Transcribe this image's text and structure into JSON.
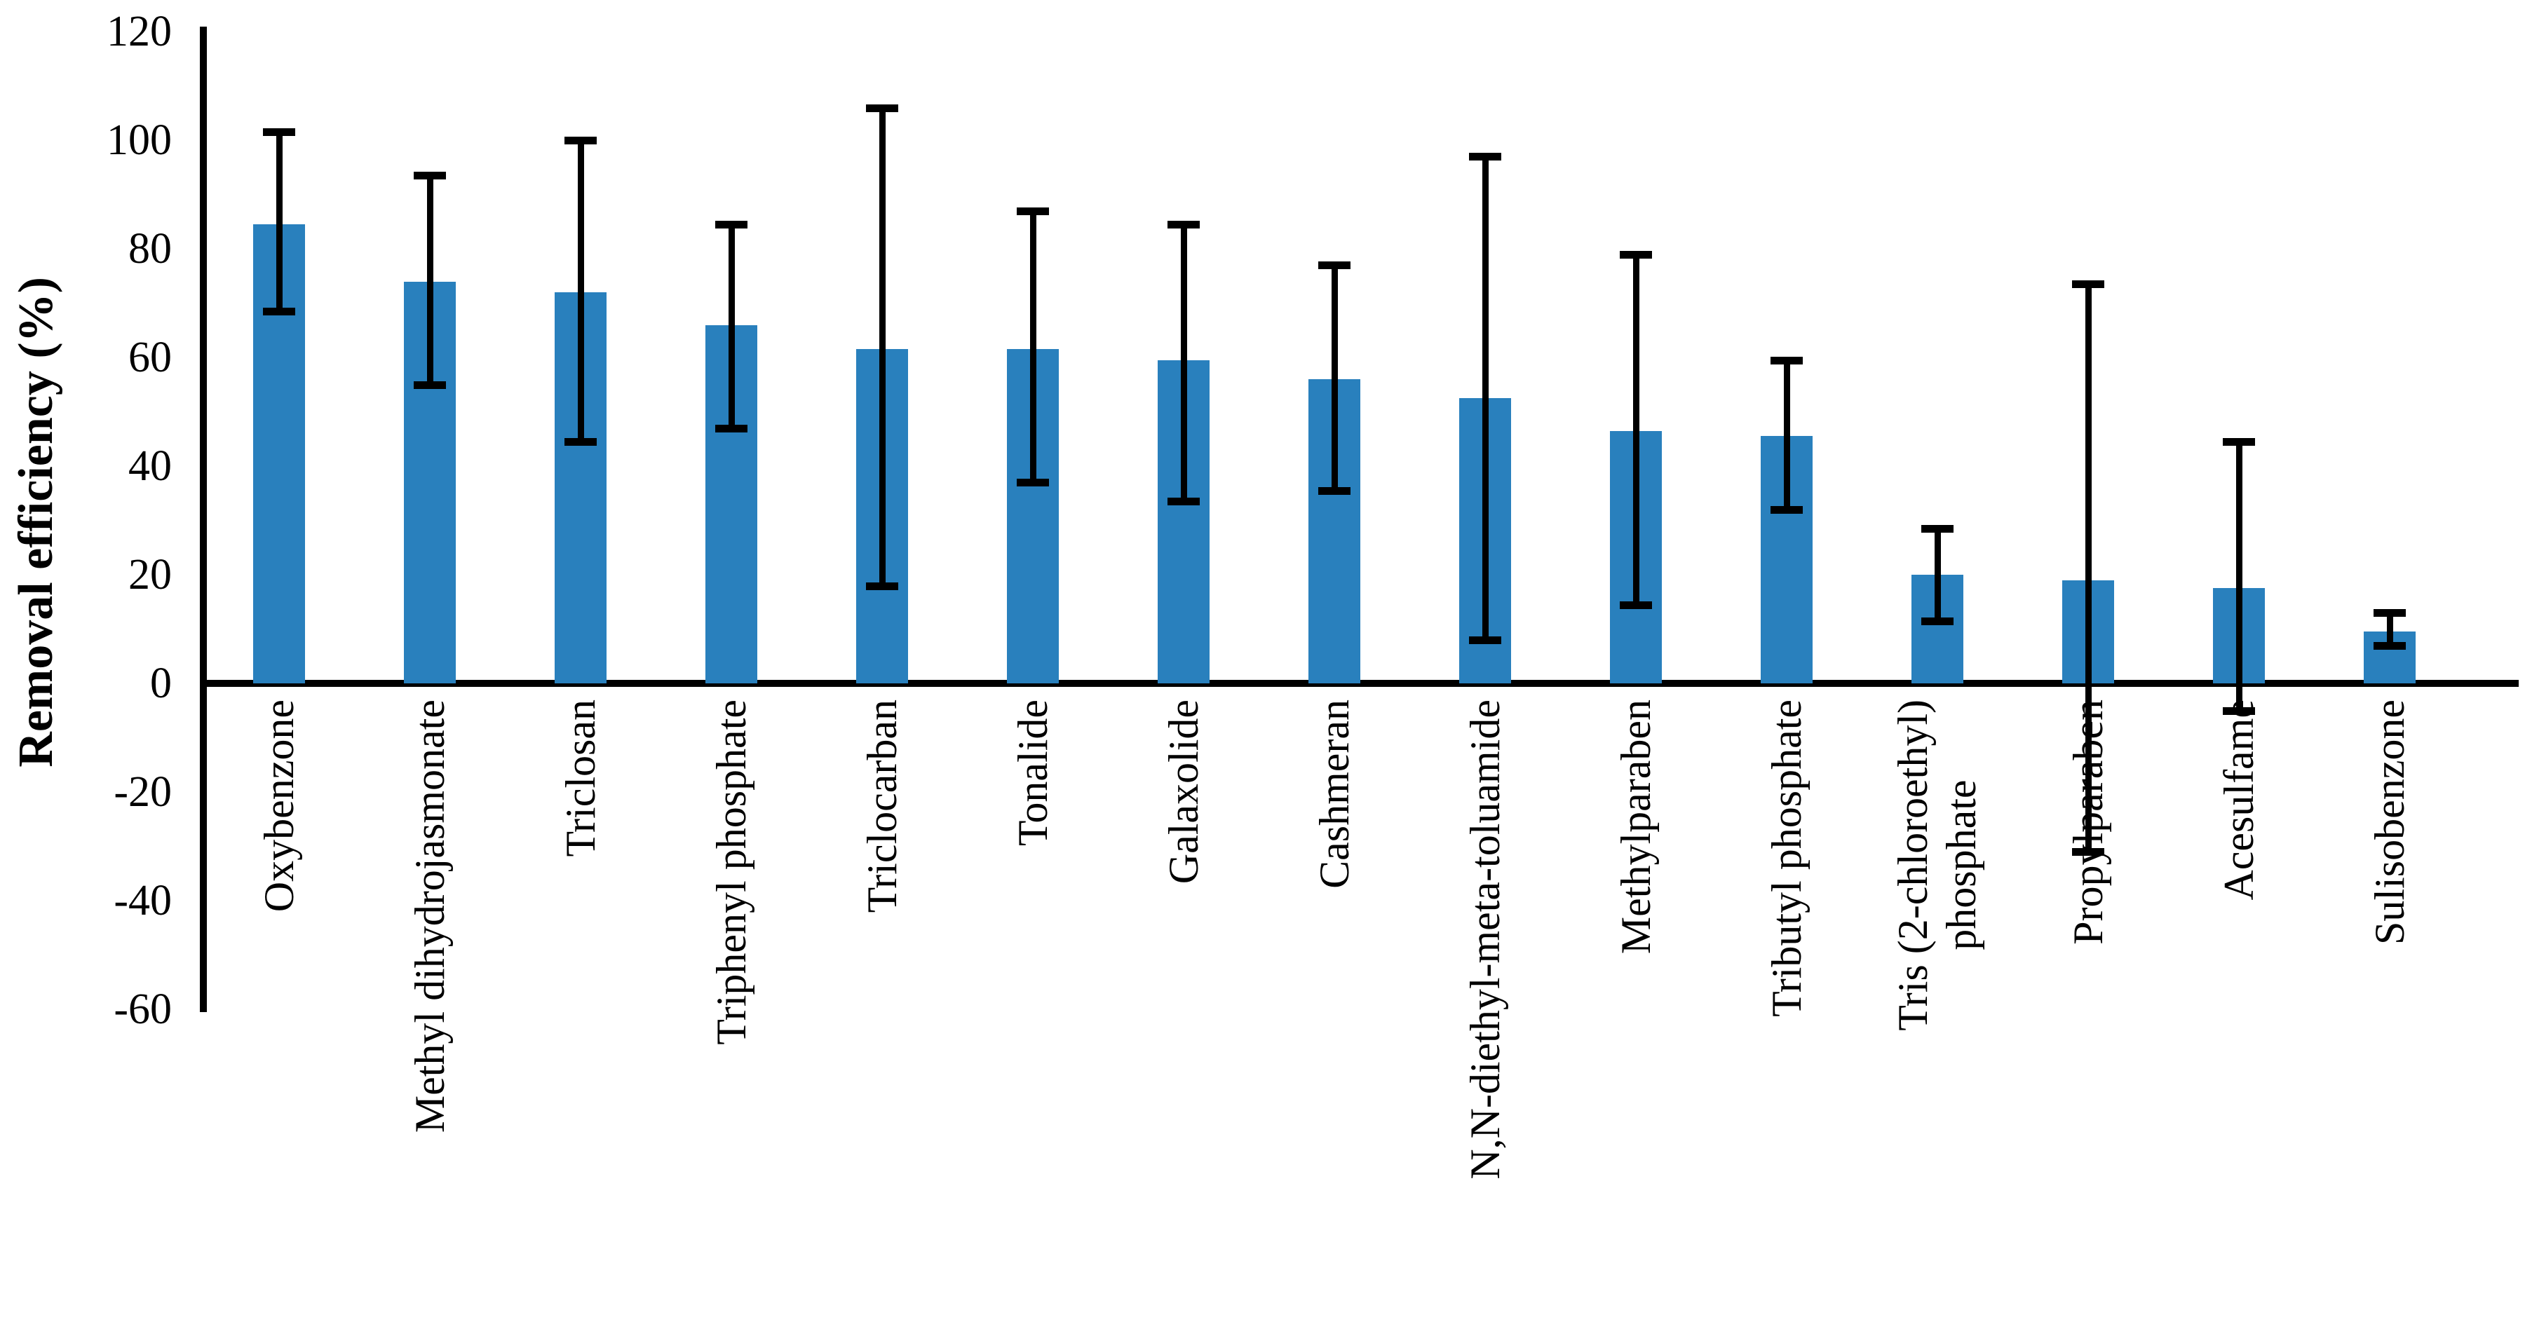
{
  "chart_data": {
    "type": "bar",
    "title": "",
    "xlabel": "",
    "ylabel": "Removal efficiency (%)",
    "ylim": [
      -60,
      120
    ],
    "ytick_step": 20,
    "ytick_labels": [
      "120",
      "100",
      "80",
      "60",
      "40",
      "20",
      "0",
      "-20",
      "-40",
      "-60"
    ],
    "grid": false,
    "legend": null,
    "bar_color": "#2980bd",
    "axis_color": "#000000",
    "error_bars": true,
    "categories": [
      "Oxybenzone",
      "Methyl dihydrojasmonate",
      "Triclosan",
      "Triphenyl phosphate",
      "Triclocarban",
      "Tonalide",
      "Galaxolide",
      "Cashmeran",
      "N,N-diethyl-meta-toluamide",
      "Methylparaben",
      "Tributyl phosphate",
      "Tris (2-chloroethyl)\nphosphate",
      "Propylparaben",
      "Acesulfame",
      "Sulisobenzone"
    ],
    "values": [
      84.5,
      74,
      72,
      66,
      61.5,
      61.5,
      59.5,
      56,
      52.5,
      46.5,
      45.5,
      20,
      19,
      17.5,
      9.5
    ],
    "error_high": [
      101.5,
      93.5,
      100,
      84.5,
      106,
      87,
      84.5,
      77,
      97,
      79,
      59.5,
      28.5,
      73.5,
      44.5,
      13
    ],
    "error_low": [
      68.5,
      55,
      44.5,
      47,
      18,
      37,
      33.5,
      35.5,
      8,
      14.5,
      32,
      11.5,
      -31,
      -5,
      7
    ]
  }
}
